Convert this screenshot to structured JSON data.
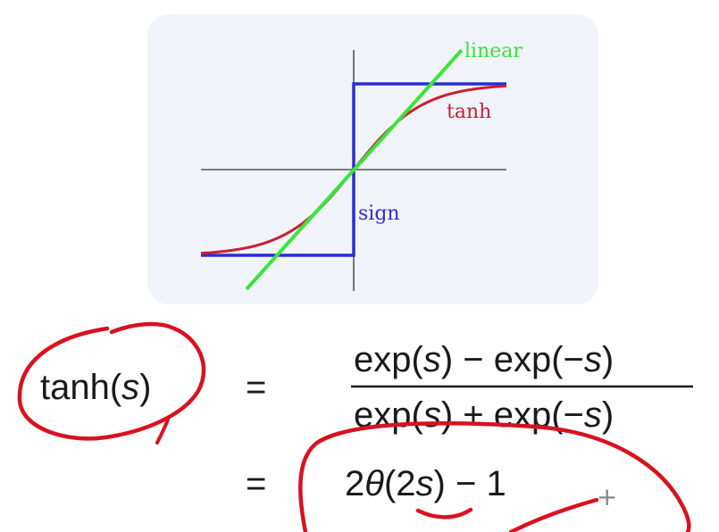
{
  "colors": {
    "panel_bg": "#f1f4fb",
    "axis": "#555555",
    "linear": "#39e53a",
    "tanh": "#cc1f2f",
    "sign": "#2b2bd6",
    "ink": "#1a1a1a",
    "annotation": "#d8121f"
  },
  "plot": {
    "labels": {
      "linear": "linear",
      "tanh": "tanh",
      "sign": "sign"
    }
  },
  "formula": {
    "lhs_name": "tanh(",
    "lhs_var": "s",
    "lhs_close": ")",
    "eq1": "=",
    "num_a": "exp(",
    "num_a_var": "s",
    "num_b": ") − exp(−",
    "num_b_var": "s",
    "num_c": ")",
    "den_a": "exp(",
    "den_a_var": "s",
    "den_b": ") + exp(−",
    "den_b_var": "s",
    "den_c": ")",
    "eq2": "=",
    "rhs2_a": "2",
    "rhs2_theta": "θ",
    "rhs2_b": "(2",
    "rhs2_var": "s",
    "rhs2_c": ") − 1"
  },
  "cursor": {
    "glyph": "+"
  }
}
